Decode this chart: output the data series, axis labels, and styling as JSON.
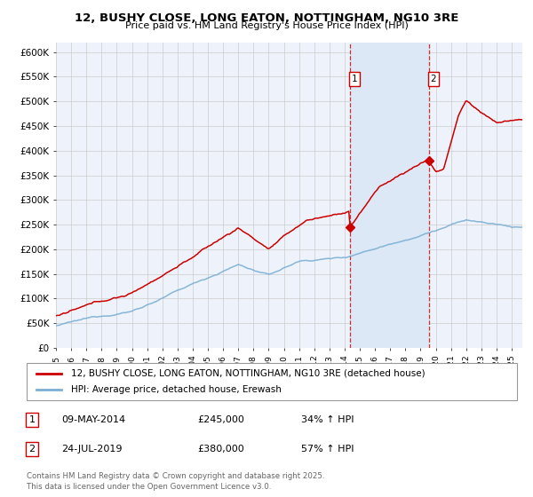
{
  "title": "12, BUSHY CLOSE, LONG EATON, NOTTINGHAM, NG10 3RE",
  "subtitle": "Price paid vs. HM Land Registry's House Price Index (HPI)",
  "background_color": "#ffffff",
  "plot_bg_color": "#eef3fb",
  "ylim": [
    0,
    620000
  ],
  "yticks": [
    0,
    50000,
    100000,
    150000,
    200000,
    250000,
    300000,
    350000,
    400000,
    450000,
    500000,
    550000,
    600000
  ],
  "ytick_labels": [
    "£0",
    "£50K",
    "£100K",
    "£150K",
    "£200K",
    "£250K",
    "£300K",
    "£350K",
    "£400K",
    "£450K",
    "£500K",
    "£550K",
    "£600K"
  ],
  "sale1_date": 2014.35,
  "sale1_price": 245000,
  "sale1_label": "1",
  "sale2_date": 2019.55,
  "sale2_price": 380000,
  "sale2_label": "2",
  "legend_line1": "12, BUSHY CLOSE, LONG EATON, NOTTINGHAM, NG10 3RE (detached house)",
  "legend_line2": "HPI: Average price, detached house, Erewash",
  "footnote": "Contains HM Land Registry data © Crown copyright and database right 2025.\nThis data is licensed under the Open Government Licence v3.0.",
  "ann1_date": "09-MAY-2014",
  "ann1_price": "£245,000",
  "ann1_pct": "34% ↑ HPI",
  "ann2_date": "24-JUL-2019",
  "ann2_price": "£380,000",
  "ann2_pct": "57% ↑ HPI",
  "line_color_red": "#cc0000",
  "line_color_blue": "#7bafd4",
  "shade_color": "#dce8f5",
  "vline_color": "#cc0000",
  "grid_color": "#cccccc",
  "xlim_left": 1995,
  "xlim_right": 2025.7
}
